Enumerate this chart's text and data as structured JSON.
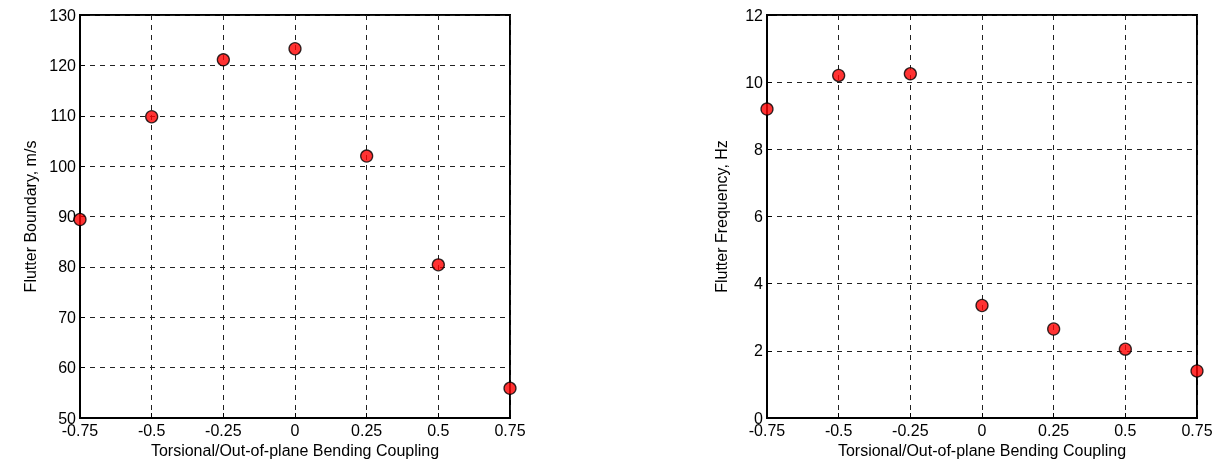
{
  "chart_data": [
    {
      "type": "scatter",
      "xlabel": "Torsional/Out-of-plane Bending Coupling",
      "ylabel": "Flutter Boundary, m/s",
      "x": [
        -0.75,
        -0.5,
        -0.25,
        0,
        0.25,
        0.5,
        0.75
      ],
      "series": [
        {
          "color": "#ff0000",
          "values": [
            89.4,
            109.8,
            121.1,
            123.3,
            102.0,
            80.4,
            55.9
          ]
        }
      ],
      "xlim": [
        -0.75,
        0.75
      ],
      "xticks": [
        -0.75,
        -0.5,
        -0.25,
        0,
        0.25,
        0.5,
        0.75
      ],
      "ylim": [
        50,
        130
      ],
      "yticks": [
        50,
        60,
        70,
        80,
        90,
        100,
        110,
        120,
        130
      ],
      "grid": true,
      "marker": "circle"
    },
    {
      "type": "scatter",
      "xlabel": "Torsional/Out-of-plane Bending Coupling",
      "ylabel": "Flutter Frequency, Hz",
      "x": [
        -0.75,
        -0.5,
        -0.25,
        0,
        0.25,
        0.5,
        0.75
      ],
      "series": [
        {
          "color": "#ff0000",
          "values": [
            9.2,
            10.2,
            10.25,
            3.35,
            2.65,
            2.05,
            1.4
          ]
        }
      ],
      "xlim": [
        -0.75,
        0.75
      ],
      "xticks": [
        -0.75,
        -0.5,
        -0.25,
        0,
        0.25,
        0.5,
        0.75
      ],
      "ylim": [
        0,
        12
      ],
      "yticks": [
        0,
        2,
        4,
        6,
        8,
        10,
        12
      ],
      "grid": true,
      "marker": "circle"
    }
  ]
}
